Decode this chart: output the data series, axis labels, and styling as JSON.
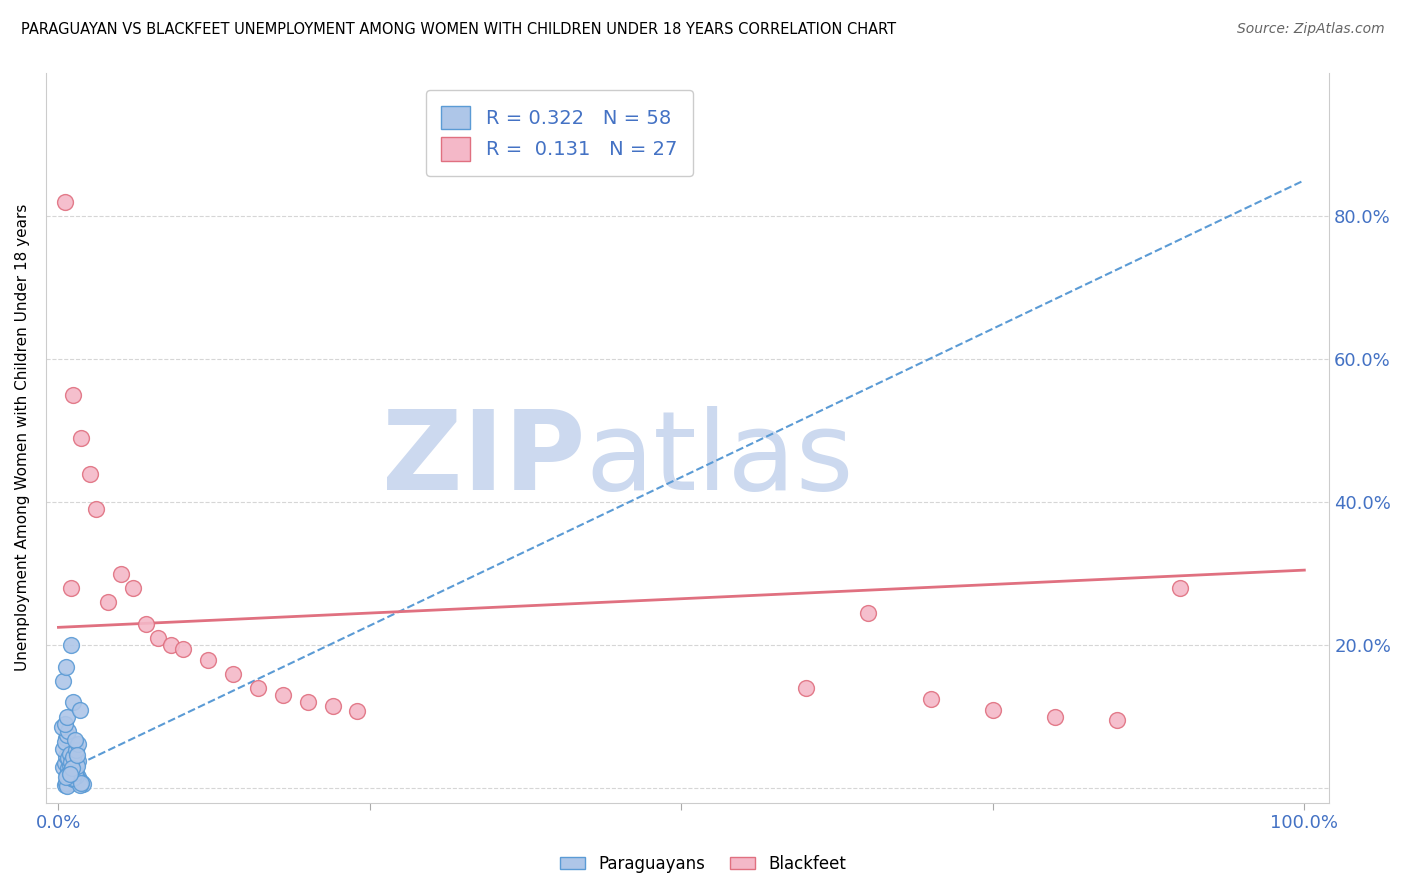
{
  "title": "PARAGUAYAN VS BLACKFEET UNEMPLOYMENT AMONG WOMEN WITH CHILDREN UNDER 18 YEARS CORRELATION CHART",
  "source": "Source: ZipAtlas.com",
  "ylabel": "Unemployment Among Women with Children Under 18 years",
  "xlabel_color": "#4472c4",
  "watermark_zip": "ZIP",
  "watermark_atlas": "atlas",
  "watermark_color": "#ccd9ef",
  "bg_color": "#ffffff",
  "grid_color": "#cccccc",
  "paraguayan_color": "#aec6e8",
  "paraguayan_edge": "#5b9bd5",
  "blackfeet_color": "#f4b8c8",
  "blackfeet_edge": "#e07080",
  "paraguayan_line_color": "#5b9bd5",
  "blackfeet_line_color": "#e07080",
  "R_paraguayan": 0.322,
  "N_paraguayan": 58,
  "R_blackfeet": 0.131,
  "N_blackfeet": 27,
  "xlim": [
    -0.01,
    1.02
  ],
  "ylim": [
    -0.02,
    1.0
  ],
  "paraguayan_x": [
    0.005,
    0.008,
    0.01,
    0.012,
    0.015,
    0.006,
    0.009,
    0.011,
    0.013,
    0.007,
    0.004,
    0.014,
    0.016,
    0.018,
    0.005,
    0.01,
    0.012,
    0.008,
    0.02,
    0.006,
    0.015,
    0.009,
    0.011,
    0.007,
    0.013,
    0.017,
    0.004,
    0.01,
    0.014,
    0.006,
    0.008,
    0.012,
    0.016,
    0.005,
    0.011,
    0.009,
    0.013,
    0.007,
    0.015,
    0.018,
    0.003,
    0.01,
    0.012,
    0.006,
    0.014,
    0.008,
    0.011,
    0.016,
    0.005,
    0.009,
    0.013,
    0.007,
    0.015,
    0.004,
    0.01,
    0.012,
    0.006,
    0.017
  ],
  "paraguayan_y": [
    0.005,
    0.01,
    0.008,
    0.015,
    0.012,
    0.007,
    0.02,
    0.018,
    0.025,
    0.003,
    0.03,
    0.022,
    0.016,
    0.009,
    0.035,
    0.04,
    0.013,
    0.028,
    0.006,
    0.045,
    0.011,
    0.033,
    0.05,
    0.019,
    0.06,
    0.004,
    0.055,
    0.024,
    0.017,
    0.07,
    0.042,
    0.014,
    0.038,
    0.065,
    0.027,
    0.048,
    0.021,
    0.075,
    0.031,
    0.008,
    0.085,
    0.037,
    0.044,
    0.016,
    0.053,
    0.08,
    0.029,
    0.062,
    0.09,
    0.02,
    0.068,
    0.1,
    0.046,
    0.15,
    0.2,
    0.12,
    0.17,
    0.11
  ],
  "blackfeet_x": [
    0.005,
    0.012,
    0.018,
    0.025,
    0.03,
    0.01,
    0.04,
    0.05,
    0.06,
    0.07,
    0.08,
    0.09,
    0.1,
    0.12,
    0.14,
    0.16,
    0.18,
    0.2,
    0.22,
    0.24,
    0.6,
    0.65,
    0.7,
    0.75,
    0.8,
    0.85,
    0.9
  ],
  "blackfeet_y": [
    0.82,
    0.55,
    0.49,
    0.44,
    0.39,
    0.28,
    0.26,
    0.3,
    0.28,
    0.23,
    0.21,
    0.2,
    0.195,
    0.18,
    0.16,
    0.14,
    0.13,
    0.12,
    0.115,
    0.108,
    0.14,
    0.245,
    0.125,
    0.11,
    0.1,
    0.095,
    0.28
  ],
  "par_trend_x": [
    0.0,
    1.0
  ],
  "par_trend_y": [
    0.02,
    0.85
  ],
  "blk_trend_x": [
    0.0,
    1.0
  ],
  "blk_trend_y": [
    0.225,
    0.305
  ]
}
